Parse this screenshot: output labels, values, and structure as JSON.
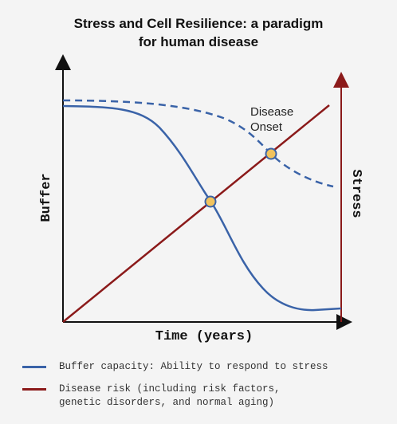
{
  "title_line1": "Stress and Cell Resilience: a paradigm",
  "title_line2": "for human disease",
  "axes": {
    "x_label": "Time (years)",
    "y_left_label": "Buffer",
    "y_right_label": "Stress"
  },
  "annotation": {
    "line1": "Disease",
    "line2": "Onset"
  },
  "legend": [
    {
      "color": "#3a63a8",
      "line1": "Buffer capacity: Ability to respond to stress",
      "line2": ""
    },
    {
      "color": "#8b1a1a",
      "line1": "Disease risk (including risk factors,",
      "line2": "genetic disorders, and normal aging)"
    }
  ],
  "colors": {
    "buffer": "#3a63a8",
    "risk": "#8b1a1a",
    "intersection_fill": "#f1c35e",
    "axis": "#111111"
  }
}
